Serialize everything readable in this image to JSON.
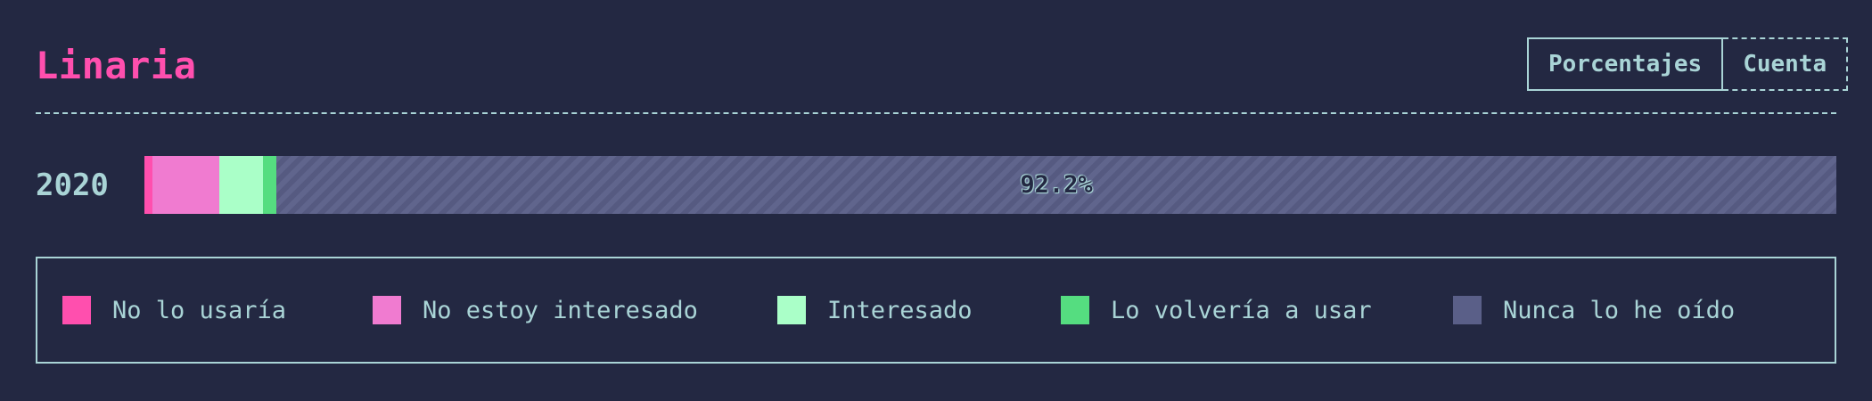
{
  "title": "Linaria",
  "toggle": {
    "percentages_label": "Porcentajes",
    "count_label": "Cuenta",
    "selected": "Porcentajes"
  },
  "chart_data": {
    "type": "bar",
    "orientation": "horizontal",
    "stacked": true,
    "normalized": true,
    "categories": [
      "2020"
    ],
    "series": [
      {
        "name": "No lo usaría",
        "color": "#ff4fae",
        "values": [
          0.5
        ]
      },
      {
        "name": "No estoy interesado",
        "color": "#f07bd0",
        "values": [
          3.9
        ]
      },
      {
        "name": "Interesado",
        "color": "#aaffc8",
        "values": [
          2.6
        ]
      },
      {
        "name": "Lo volvería a usar",
        "color": "#55dd80",
        "values": [
          0.8
        ]
      },
      {
        "name": "Nunca lo he oído",
        "color": "#5a5f88",
        "values": [
          92.2
        ]
      }
    ],
    "data_labels": [
      {
        "series": "Nunca lo he oído",
        "category": "2020",
        "text": "92.2%"
      }
    ],
    "xlim": [
      0,
      100
    ],
    "title": "Linaria",
    "xlabel": "",
    "ylabel": "",
    "legend_position": "bottom"
  }
}
